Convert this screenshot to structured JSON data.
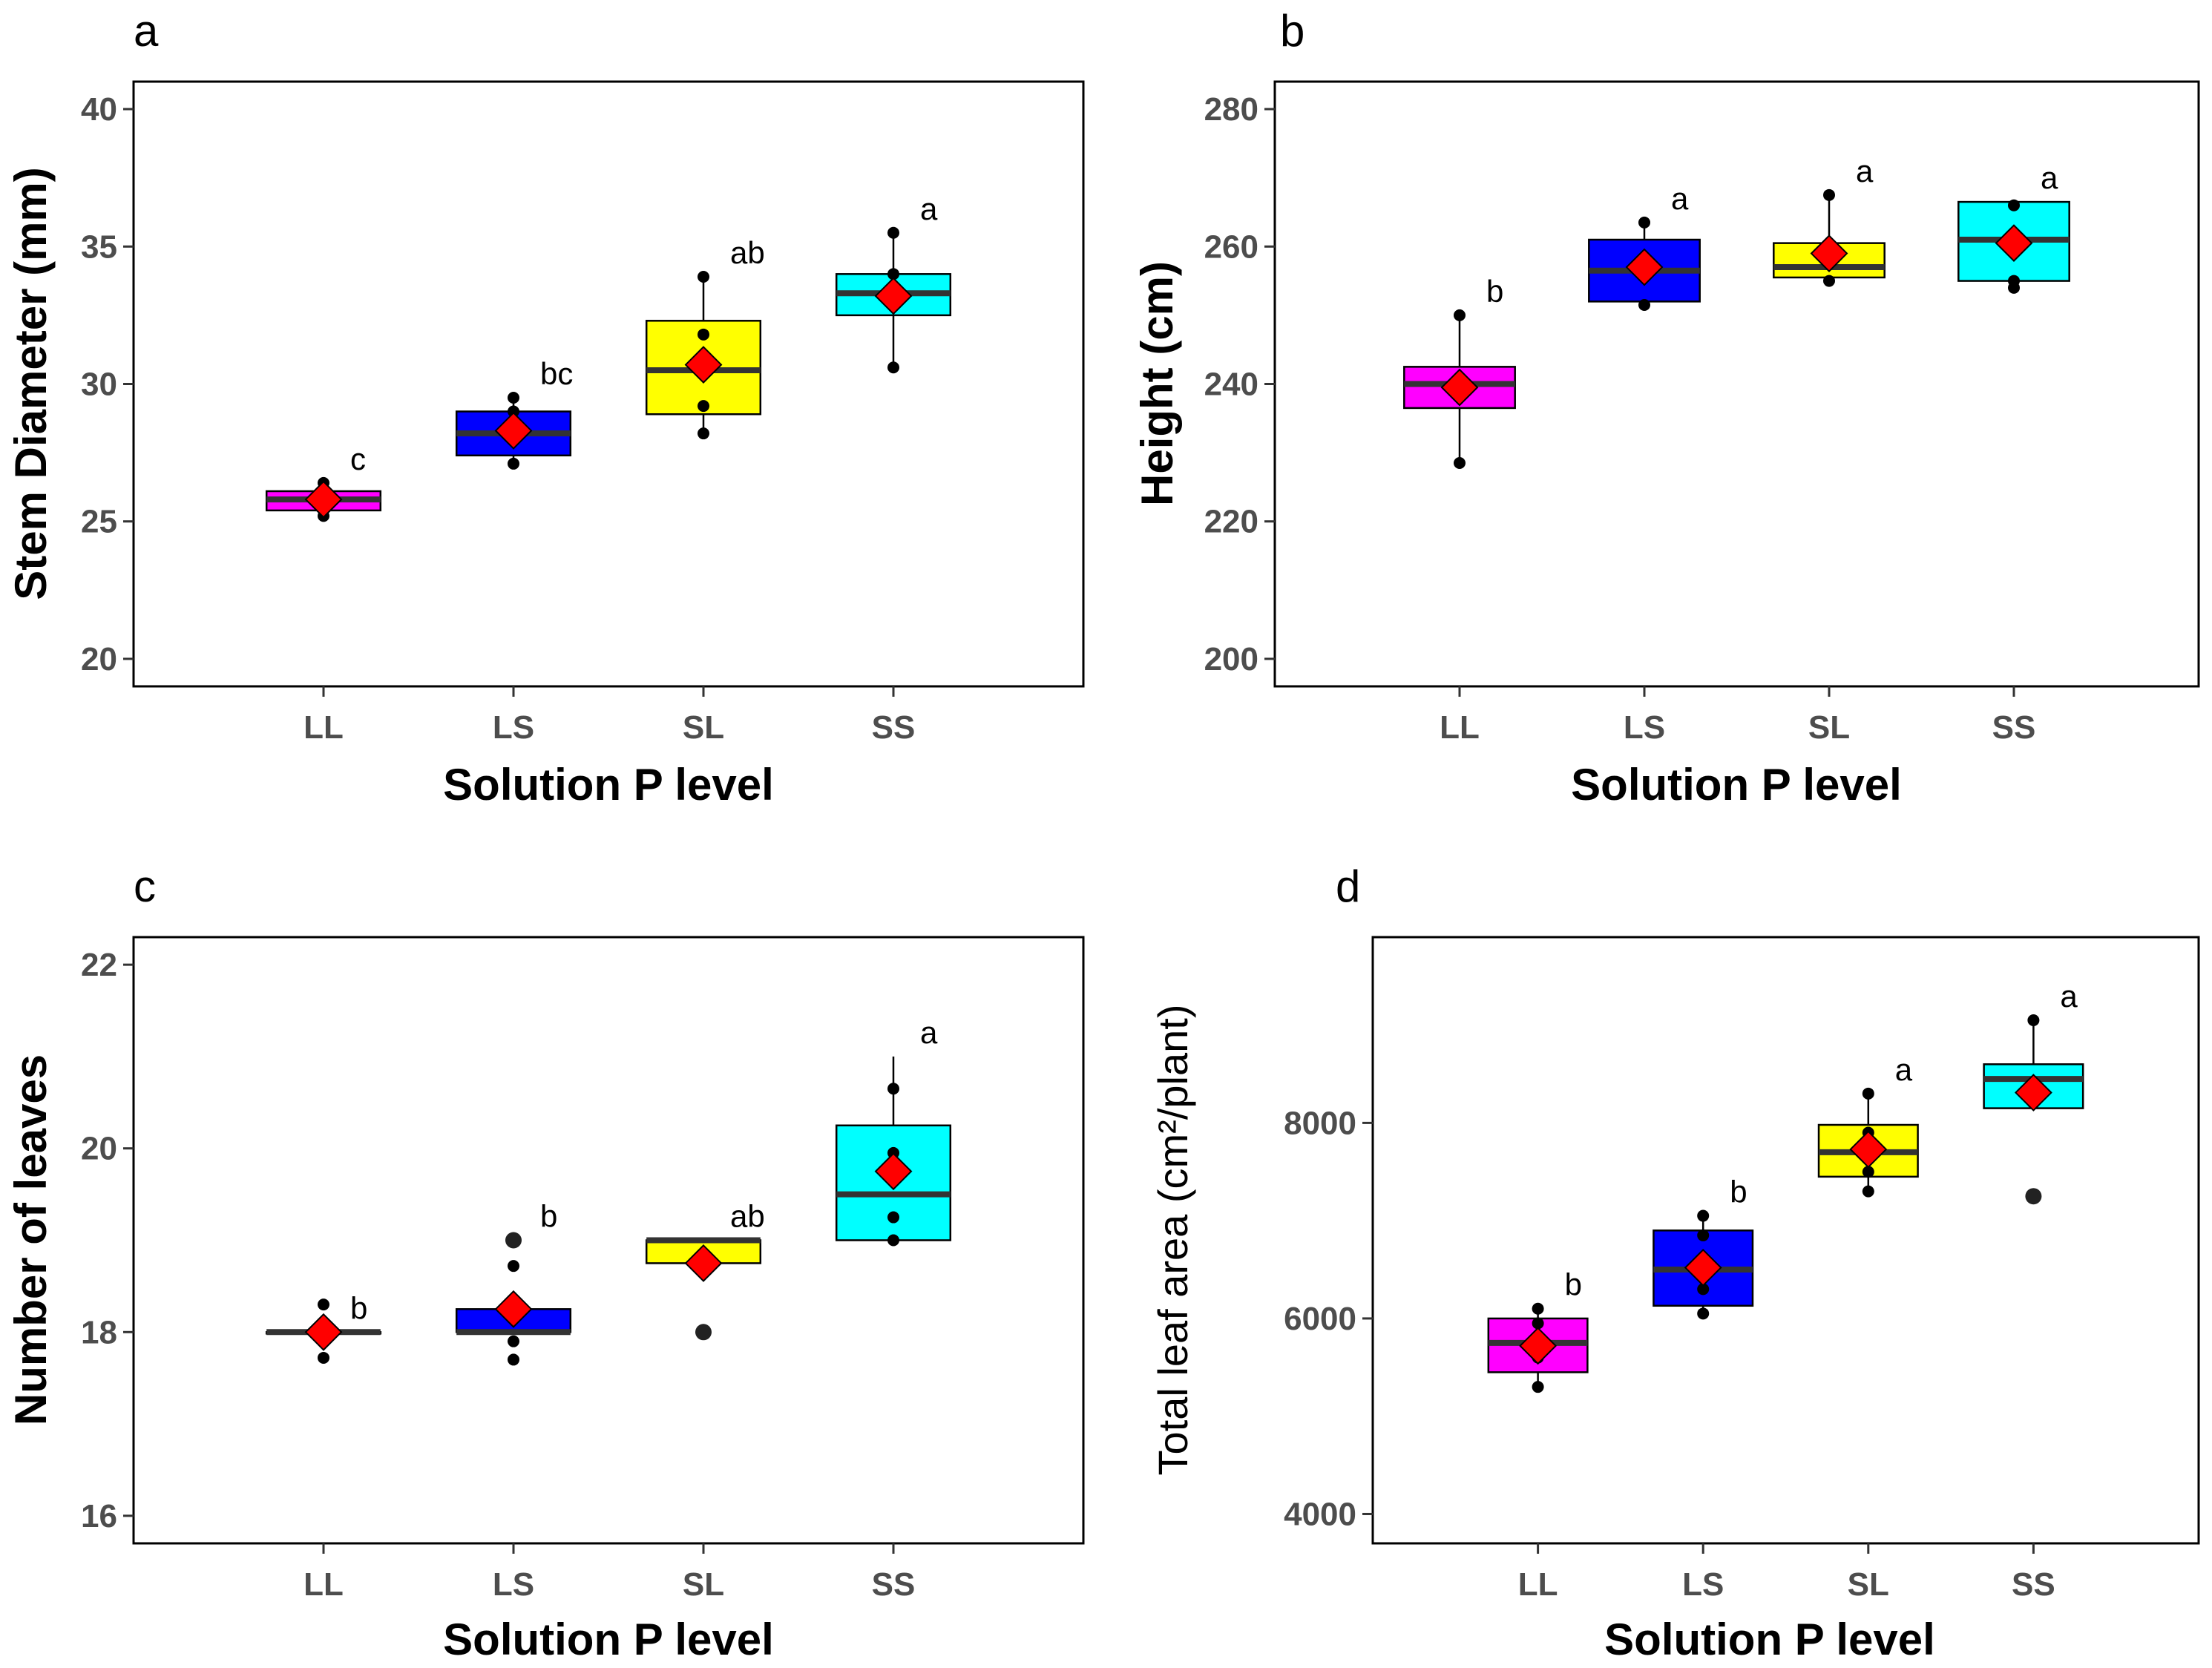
{
  "colors": {
    "LL": "#ff00ff",
    "LS": "#0000ff",
    "SL": "#ffff00",
    "SS": "#00ffff",
    "mean_marker": "#ff0000",
    "median_line": "#333333"
  },
  "chart_data": [
    {
      "panel": "a",
      "type": "box",
      "xlabel": "Solution P level",
      "ylabel": "Stem Diameter (mm)",
      "ylabel_bold": true,
      "ylim": [
        19,
        41
      ],
      "yticks": [
        20,
        25,
        30,
        35,
        40
      ],
      "categories": [
        "LL",
        "LS",
        "SL",
        "SS"
      ],
      "boxes": [
        {
          "q1": 25.4,
          "median": 25.8,
          "q3": 26.1,
          "whisker_low": 25.2,
          "whisker_high": 26.4,
          "mean": 25.8,
          "points": [
            25.2,
            25.5,
            26.0,
            26.4
          ],
          "sig": "c"
        },
        {
          "q1": 27.4,
          "median": 28.2,
          "q3": 29.0,
          "whisker_low": 27.1,
          "whisker_high": 29.5,
          "mean": 28.3,
          "points": [
            27.1,
            28.0,
            29.0,
            29.5
          ],
          "sig": "bc"
        },
        {
          "q1": 28.9,
          "median": 30.5,
          "q3": 32.3,
          "whisker_low": 28.2,
          "whisker_high": 33.9,
          "mean": 30.7,
          "points": [
            28.2,
            29.2,
            31.8,
            33.9
          ],
          "sig": "ab"
        },
        {
          "q1": 32.5,
          "median": 33.3,
          "q3": 34.0,
          "whisker_low": 30.6,
          "whisker_high": 35.5,
          "mean": 33.2,
          "points": [
            30.6,
            33.0,
            34.0,
            35.5
          ],
          "sig": "a"
        }
      ]
    },
    {
      "panel": "b",
      "type": "box",
      "xlabel": "Solution P level",
      "ylabel": "Height (cm)",
      "ylabel_bold": true,
      "ylim": [
        196,
        284
      ],
      "yticks": [
        200,
        220,
        240,
        260,
        280
      ],
      "categories": [
        "LL",
        "LS",
        "SL",
        "SS"
      ],
      "boxes": [
        {
          "q1": 236.5,
          "median": 240.0,
          "q3": 242.5,
          "whisker_low": 228.5,
          "whisker_high": 250.0,
          "mean": 239.5,
          "points": [
            228.5,
            240.0,
            250.0
          ],
          "sig": "b"
        },
        {
          "q1": 252.0,
          "median": 256.5,
          "q3": 261.0,
          "whisker_low": 251.5,
          "whisker_high": 263.5,
          "mean": 257.0,
          "points": [
            251.5,
            258.0,
            263.5
          ],
          "sig": "a"
        },
        {
          "q1": 255.5,
          "median": 257.0,
          "q3": 260.5,
          "whisker_low": 255.0,
          "whisker_high": 267.5,
          "mean": 259.0,
          "points": [
            255.0,
            257.5,
            267.5
          ],
          "sig": "a"
        },
        {
          "q1": 255.0,
          "median": 261.0,
          "q3": 266.5,
          "whisker_low": 254.0,
          "whisker_high": 266.5,
          "mean": 260.5,
          "points": [
            254.0,
            255.0,
            266.0
          ],
          "sig": "a"
        }
      ]
    },
    {
      "panel": "c",
      "type": "box",
      "xlabel": "Solution P level",
      "ylabel": "Number of leaves",
      "ylabel_bold": true,
      "ylim": [
        15.7,
        22.3
      ],
      "yticks": [
        16,
        18,
        20,
        22
      ],
      "categories": [
        "LL",
        "LS",
        "SL",
        "SS"
      ],
      "boxes": [
        {
          "q1": 18.0,
          "median": 18.0,
          "q3": 18.0,
          "whisker_low": 18.0,
          "whisker_high": 18.0,
          "mean": 18.0,
          "points": [
            17.72,
            18.3
          ],
          "outliers": [],
          "sig": "b"
        },
        {
          "q1": 18.0,
          "median": 18.0,
          "q3": 18.25,
          "whisker_low": 18.0,
          "whisker_high": 18.25,
          "mean": 18.25,
          "points": [
            17.7,
            17.9,
            18.72
          ],
          "outliers": [
            19.0
          ],
          "sig": "b"
        },
        {
          "q1": 18.75,
          "median": 19.0,
          "q3": 19.0,
          "whisker_low": 18.75,
          "whisker_high": 19.0,
          "mean": 18.75,
          "points": [],
          "outliers": [
            18.0
          ],
          "sig": "ab"
        },
        {
          "q1": 19.0,
          "median": 19.5,
          "q3": 20.25,
          "whisker_low": 19.0,
          "whisker_high": 21.0,
          "mean": 19.75,
          "points": [
            19.0,
            19.25,
            19.95,
            20.65
          ],
          "outliers": [],
          "sig": "a"
        }
      ]
    },
    {
      "panel": "d",
      "type": "box",
      "xlabel": "Solution P level",
      "ylabel": "Total leaf area (cm²/plant)",
      "ylabel_bold": false,
      "ylim": [
        3700,
        9900
      ],
      "yticks": [
        4000,
        6000,
        8000
      ],
      "categories": [
        "LL",
        "LS",
        "SL",
        "SS"
      ],
      "boxes": [
        {
          "q1": 5450,
          "median": 5750,
          "q3": 6000,
          "whisker_low": 5300,
          "whisker_high": 6100,
          "mean": 5720,
          "points": [
            5300,
            5600,
            5950,
            6100
          ],
          "outliers": [],
          "sig": "b"
        },
        {
          "q1": 6130,
          "median": 6500,
          "q3": 6900,
          "whisker_low": 6050,
          "whisker_high": 7050,
          "mean": 6520,
          "points": [
            6050,
            6300,
            6850,
            7050
          ],
          "outliers": [],
          "sig": "b"
        },
        {
          "q1": 7450,
          "median": 7700,
          "q3": 7980,
          "whisker_low": 7300,
          "whisker_high": 8300,
          "mean": 7730,
          "points": [
            7300,
            7500,
            7900,
            8300
          ],
          "outliers": [],
          "sig": "a"
        },
        {
          "q1": 8150,
          "median": 8450,
          "q3": 8600,
          "whisker_low": 8150,
          "whisker_high": 9050,
          "mean": 8310,
          "points": [
            8200,
            9050
          ],
          "outliers": [
            7250
          ],
          "sig": "a"
        }
      ]
    }
  ]
}
